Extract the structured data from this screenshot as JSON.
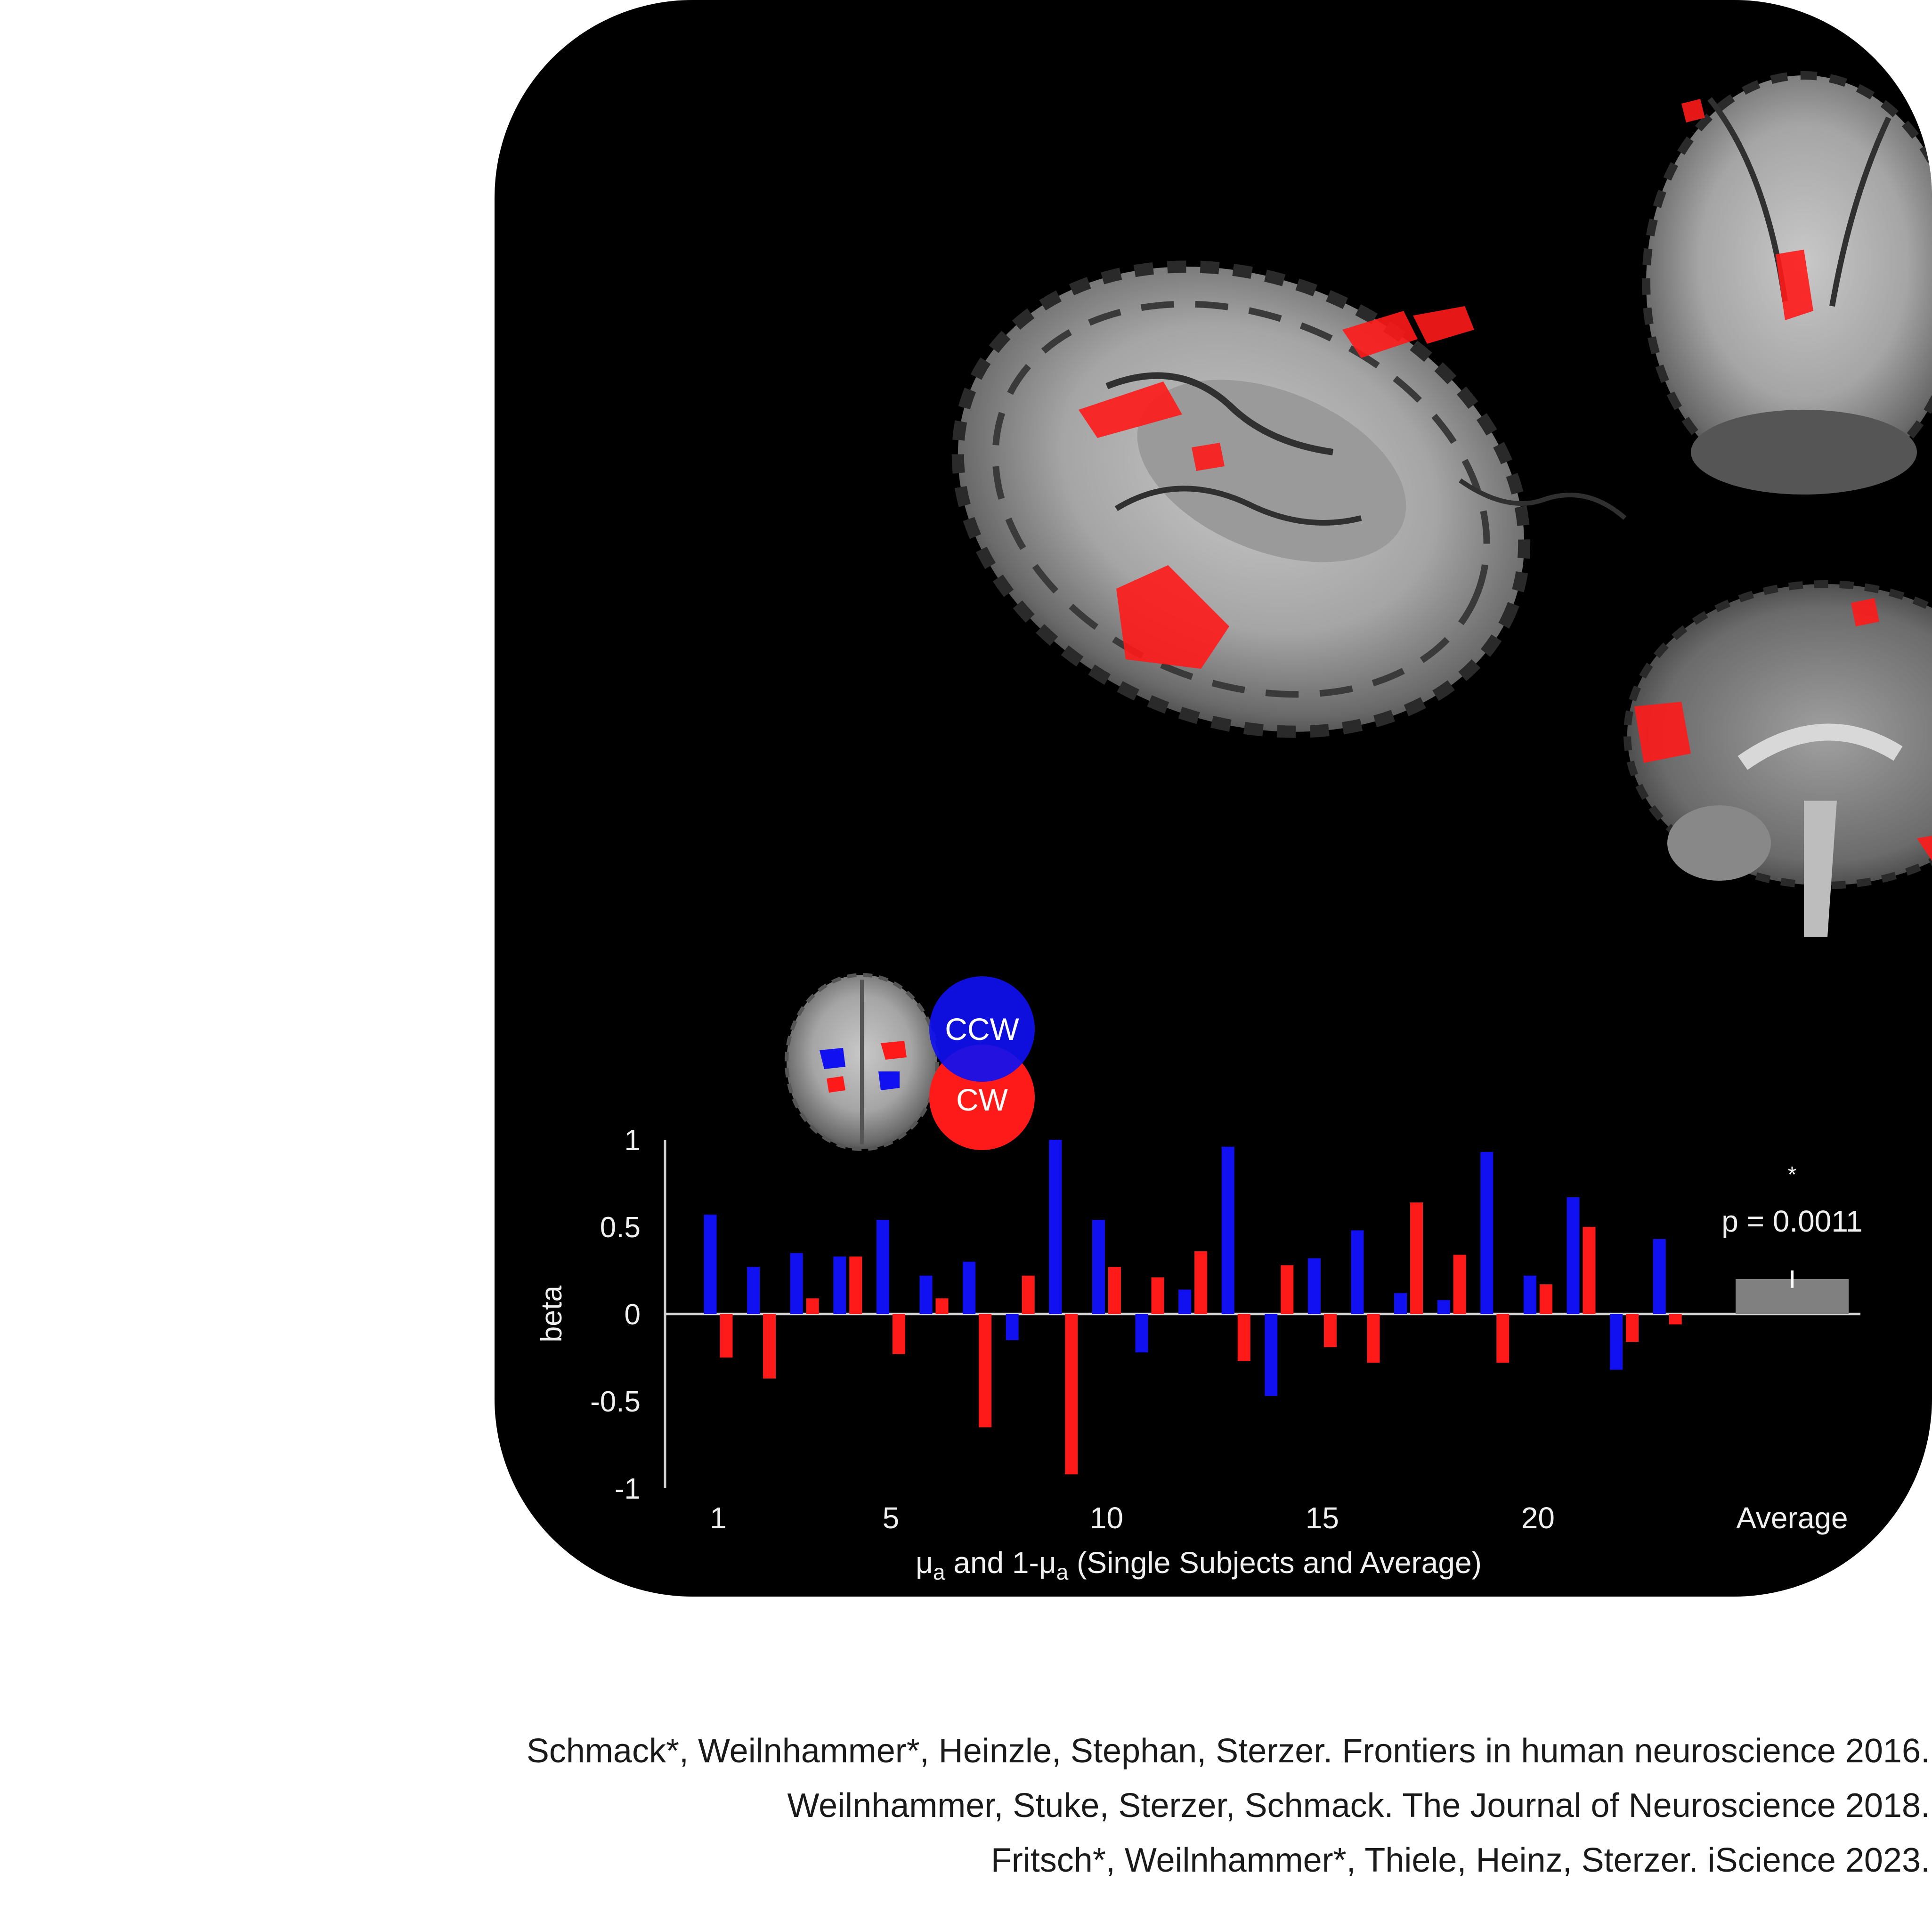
{
  "colors": {
    "ccw": "#1010f0",
    "cw": "#ff1a1a",
    "average_bar": "#808080",
    "panel_bg": "#000000",
    "axis": "#cfcfcf",
    "text_light": "#f0f0f0"
  },
  "legend": {
    "ccw_label": "CCW",
    "cw_label": "CW"
  },
  "chart_data": {
    "type": "bar",
    "ylabel": "beta",
    "xlabel_parts": {
      "mu": "μ",
      "sub": "a",
      "mid": " and 1-",
      "tail": " (Single Subjects and Average)"
    },
    "ylim": [
      -1,
      1
    ],
    "yticks": [
      1,
      0.5,
      0,
      -0.5,
      -1
    ],
    "ytick_labels": [
      "1",
      "0.5",
      "0",
      "-0.5",
      "-1"
    ],
    "xtick_labels": [
      {
        "subject": 1,
        "label": "1"
      },
      {
        "subject": 5,
        "label": "5"
      },
      {
        "subject": 10,
        "label": "10"
      },
      {
        "subject": 15,
        "label": "15"
      },
      {
        "subject": 20,
        "label": "20"
      }
    ],
    "average_label": "Average",
    "subjects": [
      1,
      2,
      3,
      4,
      5,
      6,
      7,
      8,
      9,
      10,
      11,
      12,
      13,
      14,
      15,
      16,
      17,
      18,
      19,
      20,
      21,
      22,
      23
    ],
    "series": [
      {
        "color": "#1010f0",
        "values": [
          0.57,
          0.27,
          0.35,
          0.33,
          0.54,
          0.22,
          0.3,
          -0.15,
          1.0,
          0.54,
          -0.22,
          0.14,
          0.96,
          -0.47,
          0.32,
          0.48,
          0.12,
          0.08,
          0.93,
          0.22,
          0.67,
          -0.32,
          0.43
        ]
      },
      {
        "color": "#ff1a1a",
        "values": [
          -0.25,
          -0.37,
          0.09,
          0.33,
          -0.23,
          0.09,
          -0.65,
          0.22,
          -0.92,
          0.27,
          0.21,
          0.36,
          -0.27,
          0.28,
          -0.19,
          -0.28,
          0.64,
          0.34,
          -0.28,
          0.17,
          0.5,
          -0.16,
          -0.06
        ]
      }
    ],
    "average": {
      "value": 0.2,
      "error": 0.05,
      "significance": "*",
      "p_label": "p = 0.0011"
    }
  },
  "citations": [
    "Schmack*, Weilnhammer*, Heinzle, Stephan, Sterzer. Frontiers in human neuroscience 2016.",
    "Weilnhammer, Stuke,  Sterzer,  Schmack. The Journal of Neuroscience 2018.",
    "Fritsch*, Weilnhammer*, Thiele, Heinz, Sterzer. iScience 2023."
  ]
}
